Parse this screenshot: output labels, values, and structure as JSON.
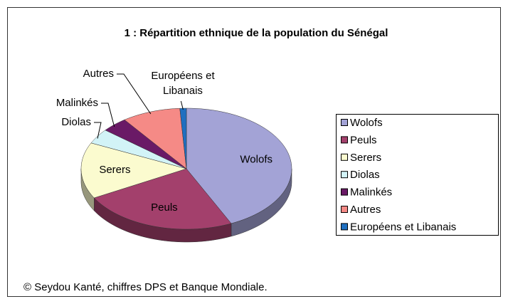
{
  "chart_data": {
    "type": "pie3d",
    "title": "1 : Répartition ethnique de la population du Sénégal",
    "categories": [
      "Wolofs",
      "Peuls",
      "Serers",
      "Diolas",
      "Malinkés",
      "Autres",
      "Européens et Libanais"
    ],
    "values": [
      43,
      24,
      15,
      4,
      4,
      9,
      1
    ],
    "colors": [
      "#a3a3d6",
      "#a3406c",
      "#fbfbcf",
      "#d2f3f7",
      "#6a1a66",
      "#f58a86",
      "#1f6fc0"
    ],
    "legend": "right",
    "caption": "© Seydou Kanté, chiffres DPS et Banque Mondiale."
  }
}
